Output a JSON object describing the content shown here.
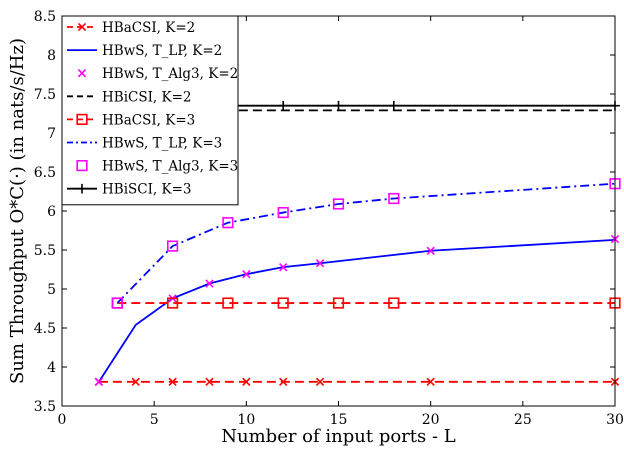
{
  "chart_data": {
    "type": "line",
    "xlabel": "Number of input ports - L",
    "ylabel": "Sum Throughput O*C(·) (in nats/s/Hz)",
    "xlim": [
      0,
      30
    ],
    "ylim": [
      3.5,
      8.5
    ],
    "xticks": [
      0,
      5,
      10,
      15,
      20,
      25,
      30
    ],
    "yticks": [
      3.5,
      4,
      4.5,
      5,
      5.5,
      6,
      6.5,
      7,
      7.5,
      8,
      8.5
    ],
    "grid": false,
    "legend_position": "top-left",
    "series": [
      {
        "name": "HBaCSI, K=2",
        "color": "#ff0000",
        "dash": "dashed",
        "marker": "x",
        "x": [
          2,
          4,
          6,
          8,
          10,
          12,
          14,
          20,
          30
        ],
        "y": [
          3.81,
          3.81,
          3.81,
          3.81,
          3.81,
          3.81,
          3.81,
          3.81,
          3.81
        ]
      },
      {
        "name": "HBwS, T_LP, K=2",
        "color": "#0000ff",
        "dash": "solid",
        "marker": "none",
        "x": [
          2,
          4,
          6,
          8,
          10,
          12,
          14,
          20,
          30
        ],
        "y": [
          3.81,
          4.54,
          4.88,
          5.07,
          5.19,
          5.28,
          5.33,
          5.49,
          5.63
        ]
      },
      {
        "name": "HBwS, T_Alg3, K=2",
        "color": "#ff00ff",
        "dash": "none",
        "marker": "x",
        "x": [
          2,
          6,
          8,
          10,
          12,
          14,
          20,
          30
        ],
        "y": [
          3.81,
          4.88,
          5.07,
          5.19,
          5.28,
          5.33,
          5.49,
          5.64
        ]
      },
      {
        "name": "HBiCSI, K=2",
        "color": "#000000",
        "dash": "dashed",
        "marker": "none",
        "x": [
          2,
          30
        ],
        "y": [
          7.29,
          7.29
        ]
      },
      {
        "name": "HBaCSI, K=3",
        "color": "#ff0000",
        "dash": "dashed",
        "marker": "square",
        "x": [
          3,
          6,
          9,
          12,
          15,
          18,
          30
        ],
        "y": [
          4.82,
          4.82,
          4.82,
          4.82,
          4.82,
          4.82,
          4.82
        ]
      },
      {
        "name": "HBwS, T_LP, K=3",
        "color": "#0000ff",
        "dash": "dashdot",
        "marker": "none",
        "x": [
          3,
          6,
          9,
          12,
          15,
          18,
          30
        ],
        "y": [
          4.82,
          5.55,
          5.85,
          5.98,
          6.09,
          6.16,
          6.35
        ]
      },
      {
        "name": "HBwS, T_Alg3, K=3",
        "color": "#ff00ff",
        "dash": "none",
        "marker": "square",
        "x": [
          3,
          6,
          9,
          12,
          15,
          18,
          30
        ],
        "y": [
          4.82,
          5.55,
          5.85,
          5.98,
          6.09,
          6.16,
          6.35
        ]
      },
      {
        "name": "HBiSCI, K=3",
        "color": "#000000",
        "dash": "solid",
        "marker": "plus",
        "x": [
          2,
          12,
          15,
          18,
          30
        ],
        "y": [
          7.35,
          7.35,
          7.35,
          7.35,
          7.35
        ]
      }
    ]
  }
}
